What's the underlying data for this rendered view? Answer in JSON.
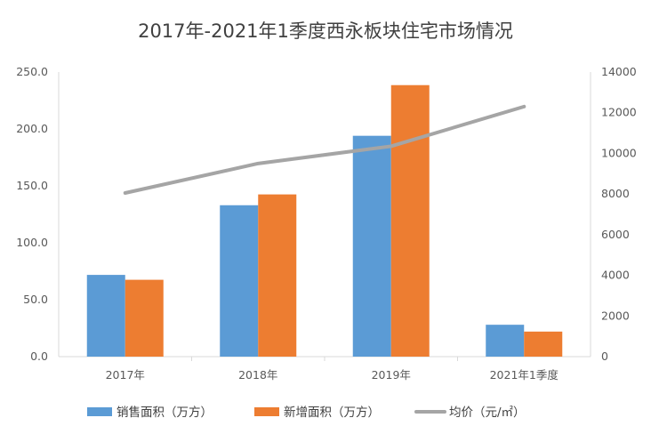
{
  "chart_data": {
    "type": "bar",
    "title": "2017年-2021年1季度西永板块住宅市场情况",
    "categories": [
      "2017年",
      "2018年",
      "2019年",
      "2021年1季度"
    ],
    "series": [
      {
        "name": "销售面积（万方）",
        "type": "bar",
        "axis": "left",
        "values": [
          71.8,
          133.0,
          194.0,
          28.0
        ]
      },
      {
        "name": "新增面积（万方）",
        "type": "bar",
        "axis": "left",
        "values": [
          67.5,
          142.5,
          238.5,
          22.0
        ]
      },
      {
        "name": "均价（元/㎡）",
        "type": "line",
        "axis": "right",
        "values": [
          8050,
          9500,
          10350,
          12300
        ]
      }
    ],
    "y_left": {
      "min": 0,
      "max": 250,
      "ticks": [
        "0.0",
        "50.0",
        "100.0",
        "150.0",
        "200.0",
        "250.0"
      ]
    },
    "y_right": {
      "min": 0,
      "max": 14000,
      "ticks": [
        "0",
        "2000",
        "4000",
        "6000",
        "8000",
        "10000",
        "12000",
        "14000"
      ]
    },
    "grid": false,
    "legend_position": "bottom",
    "colors": {
      "bar1": "#5b9bd5",
      "bar2": "#ed7d31",
      "line": "#a5a5a5",
      "axis": "#d9d9d9"
    }
  }
}
